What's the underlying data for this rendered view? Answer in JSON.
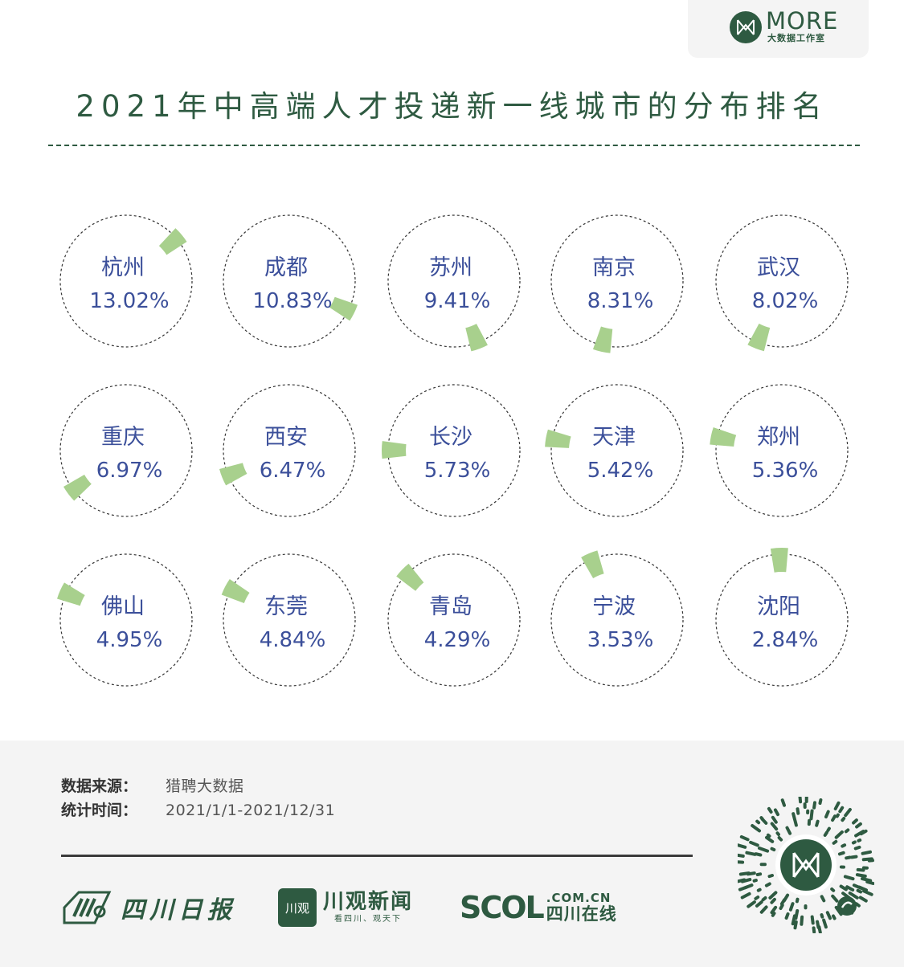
{
  "brand": {
    "title": "MORE",
    "subtitle": "大数据工作室"
  },
  "header": {
    "title": "2021年中高端人才投递新一线城市的分布排名"
  },
  "chart_data": {
    "type": "radial-bar",
    "title": "2021年中高端人才投递新一线城市的分布排名",
    "unit": "%",
    "accent_color": "#a8d08d",
    "label_color": "#3b4f9a",
    "items": [
      {
        "city": "杭州",
        "value": 13.02,
        "label": "13.02%"
      },
      {
        "city": "成都",
        "value": 10.83,
        "label": "10.83%"
      },
      {
        "city": "苏州",
        "value": 9.41,
        "label": "9.41%"
      },
      {
        "city": "南京",
        "value": 8.31,
        "label": "8.31%"
      },
      {
        "city": "武汉",
        "value": 8.02,
        "label": "8.02%"
      },
      {
        "city": "重庆",
        "value": 6.97,
        "label": "6.97%"
      },
      {
        "city": "西安",
        "value": 6.47,
        "label": "6.47%"
      },
      {
        "city": "长沙",
        "value": 5.73,
        "label": "5.73%"
      },
      {
        "city": "天津",
        "value": 5.42,
        "label": "5.42%"
      },
      {
        "city": "郑州",
        "value": 5.36,
        "label": "5.36%"
      },
      {
        "city": "佛山",
        "value": 4.95,
        "label": "4.95%"
      },
      {
        "city": "东莞",
        "value": 4.84,
        "label": "4.84%"
      },
      {
        "city": "青岛",
        "value": 4.29,
        "label": "4.29%"
      },
      {
        "city": "宁波",
        "value": 3.53,
        "label": "3.53%"
      },
      {
        "city": "沈阳",
        "value": 2.84,
        "label": "2.84%"
      }
    ]
  },
  "footer": {
    "source_label": "数据来源：",
    "source_value": "猎聘大数据",
    "period_label": "统计时间：",
    "period_value": "2021/1/1-2021/12/31",
    "logos": {
      "sichuan_ribao": "四川日报",
      "chuanguan_box": "川观",
      "chuanguan_name": "川观新闻",
      "chuanguan_slogan": "看四川、观天下",
      "scol_mark": "SCOL",
      "scol_domain": ".COM.CN",
      "scol_cn": "四川在线"
    }
  }
}
